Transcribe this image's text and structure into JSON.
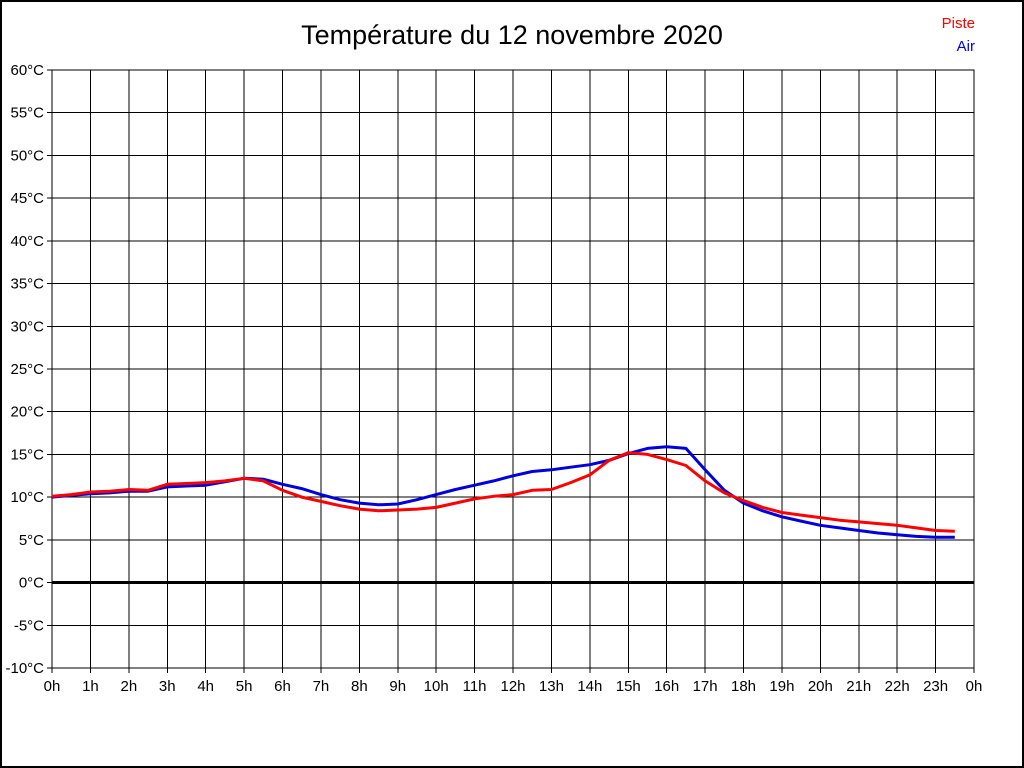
{
  "title": "Température du 12 novembre 2020",
  "legend": {
    "position": "top-right",
    "items": [
      {
        "label": "Piste",
        "color": "#ff0000"
      },
      {
        "label": "Air",
        "color": "#0000dd"
      }
    ]
  },
  "chart_data": {
    "type": "line",
    "title": "Température du 12 novembre 2020",
    "xlabel": "",
    "ylabel": "",
    "xlim": [
      0,
      24
    ],
    "ylim": [
      -10,
      60
    ],
    "y_step": 5,
    "grid": true,
    "grid_color": "#000000",
    "zero_line": {
      "value": 0,
      "color": "#000000",
      "width": 3
    },
    "x_tick_labels": [
      "0h",
      "1h",
      "2h",
      "3h",
      "4h",
      "5h",
      "6h",
      "7h",
      "8h",
      "9h",
      "10h",
      "11h",
      "12h",
      "13h",
      "14h",
      "15h",
      "16h",
      "17h",
      "18h",
      "19h",
      "20h",
      "21h",
      "22h",
      "23h",
      "0h"
    ],
    "y_tick_labels": [
      "-10°C",
      "-5°C",
      "0°C",
      "5°C",
      "10°C",
      "15°C",
      "20°C",
      "25°C",
      "30°C",
      "35°C",
      "40°C",
      "45°C",
      "50°C",
      "55°C",
      "60°C"
    ],
    "x": [
      0,
      0.5,
      1,
      1.5,
      2,
      2.5,
      3,
      3.5,
      4,
      4.5,
      5,
      5.5,
      6,
      6.5,
      7,
      7.5,
      8,
      8.5,
      9,
      9.5,
      10,
      10.5,
      11,
      11.5,
      12,
      12.5,
      13,
      13.5,
      14,
      14.5,
      15,
      15.5,
      16,
      16.5,
      17,
      17.5,
      18,
      18.5,
      19,
      19.5,
      20,
      20.5,
      21,
      21.5,
      22,
      22.5,
      23,
      23.5
    ],
    "series": [
      {
        "name": "Piste",
        "color": "#ff0000",
        "values": [
          10.1,
          10.3,
          10.6,
          10.7,
          10.9,
          10.8,
          11.5,
          11.6,
          11.7,
          11.9,
          12.2,
          11.9,
          10.8,
          10.0,
          9.5,
          9.0,
          8.6,
          8.4,
          8.5,
          8.6,
          8.8,
          9.3,
          9.8,
          10.1,
          10.3,
          10.8,
          10.9,
          11.7,
          12.6,
          14.3,
          15.2,
          15.0,
          14.4,
          13.7,
          11.9,
          10.5,
          9.6,
          8.8,
          8.2,
          7.9,
          7.6,
          7.3,
          7.1,
          6.9,
          6.7,
          6.4,
          6.1,
          6.0
        ]
      },
      {
        "name": "Air",
        "color": "#0000dd",
        "values": [
          10.0,
          10.2,
          10.4,
          10.5,
          10.7,
          10.7,
          11.2,
          11.3,
          11.4,
          11.8,
          12.2,
          12.1,
          11.5,
          11.0,
          10.3,
          9.7,
          9.3,
          9.1,
          9.2,
          9.7,
          10.3,
          10.9,
          11.4,
          11.9,
          12.5,
          13.0,
          13.2,
          13.5,
          13.8,
          14.3,
          15.1,
          15.7,
          15.9,
          15.7,
          13.2,
          10.8,
          9.3,
          8.4,
          7.7,
          7.2,
          6.7,
          6.4,
          6.1,
          5.8,
          5.6,
          5.4,
          5.3,
          5.3
        ]
      }
    ]
  }
}
